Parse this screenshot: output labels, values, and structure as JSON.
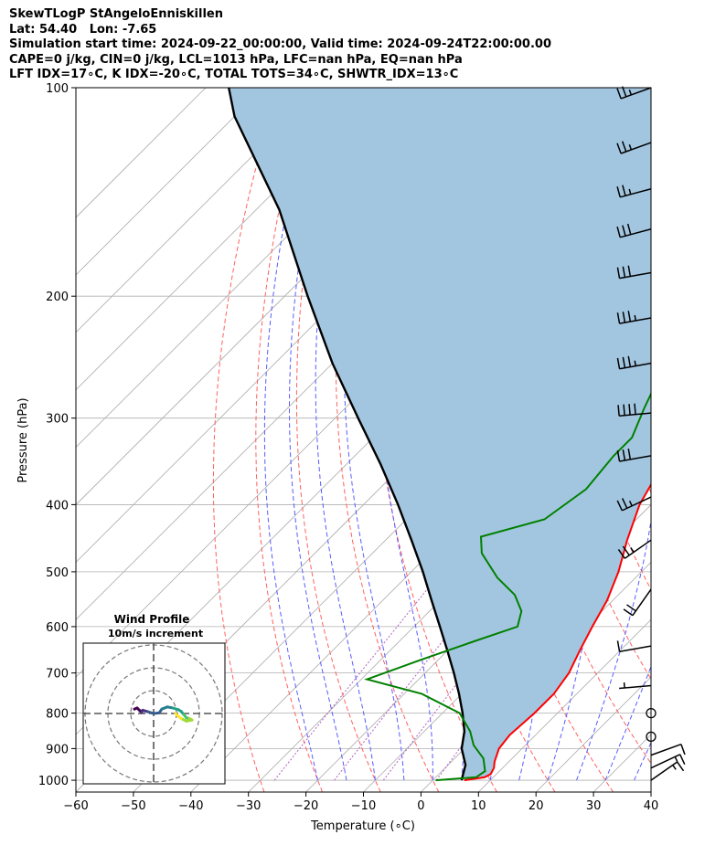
{
  "header": {
    "lines": [
      "SkewTLogP StAngeloEnniskillen",
      "Lat: 54.40   Lon: -7.65",
      "Simulation start time: 2024-09-22_00:00:00, Valid time: 2024-09-24T22:00:00.00",
      "CAPE=0 j/kg, CIN=0 j/kg, LCL=1013 hPa, LFC=nan hPa, EQ=nan hPa",
      "LFT IDX=17∘C, K IDX=-20∘C, TOTAL TOTS=34∘C, SHWTR_IDX=13∘C"
    ]
  },
  "chart_data": {
    "type": "line",
    "xlabel": "Temperature (∘C)",
    "ylabel": "Pressure (hPa)",
    "xlim": [
      -60,
      40
    ],
    "ylim": [
      1040,
      100
    ],
    "y_scale": "log",
    "x_ticks": [
      -60,
      -50,
      -40,
      -30,
      -20,
      -10,
      0,
      10,
      20,
      30,
      40
    ],
    "x_tick_labels": [
      "−60",
      "−50",
      "−40",
      "−30",
      "−20",
      "−10",
      "0",
      "10",
      "20",
      "30",
      "40"
    ],
    "y_ticks": [
      1000,
      900,
      800,
      700,
      600,
      500,
      400,
      300,
      200,
      100
    ],
    "grid": true,
    "skew": "45-degree skewed isotherms",
    "colors": {
      "temperature": "#ff0000",
      "dewpoint": "#008000",
      "parcel": "#000000",
      "cape_fill": "#a3c6e0",
      "dry_adiabats": "#ff6060",
      "moist_adiabats": "#5a5aff",
      "mixing_ratio": "#b060c0",
      "isotherms": "#aaaaaa"
    },
    "series": [
      {
        "key": "temperature",
        "points": [
          [
            5.5,
            1000
          ],
          [
            8.5,
            990
          ],
          [
            9,
            980
          ],
          [
            8.5,
            960
          ],
          [
            7.5,
            940
          ],
          [
            6,
            900
          ],
          [
            5.5,
            860
          ],
          [
            6,
            800
          ],
          [
            6,
            750
          ],
          [
            5,
            700
          ],
          [
            3,
            650
          ],
          [
            1,
            600
          ],
          [
            -1,
            550
          ],
          [
            -4,
            500
          ],
          [
            -8,
            450
          ],
          [
            -12,
            400
          ],
          [
            -15,
            350
          ],
          [
            -18,
            300
          ],
          [
            -21,
            260
          ],
          [
            -21.5,
            250
          ],
          [
            -25,
            230
          ],
          [
            -28,
            210
          ],
          [
            -32,
            190
          ],
          [
            -35,
            170
          ],
          [
            -39,
            150
          ],
          [
            -43,
            130
          ],
          [
            -47,
            115
          ],
          [
            -50,
            100
          ]
        ]
      },
      {
        "key": "dewpoint",
        "points": [
          [
            0.5,
            1000
          ],
          [
            7,
            990
          ],
          [
            7.5,
            970
          ],
          [
            5,
            930
          ],
          [
            1,
            890
          ],
          [
            -2,
            850
          ],
          [
            -7,
            800
          ],
          [
            -17,
            750
          ],
          [
            -29,
            715
          ],
          [
            -23,
            670
          ],
          [
            -17,
            630
          ],
          [
            -12,
            600
          ],
          [
            -14,
            570
          ],
          [
            -18,
            540
          ],
          [
            -24,
            510
          ],
          [
            -31,
            470
          ],
          [
            -34,
            445
          ],
          [
            -26,
            420
          ],
          [
            -24,
            380
          ],
          [
            -25,
            340
          ],
          [
            -25,
            320
          ],
          [
            -28,
            290
          ],
          [
            -31,
            260
          ],
          [
            -33,
            230
          ],
          [
            -37,
            210
          ],
          [
            -40,
            200
          ],
          [
            -42,
            180
          ],
          [
            -46,
            165
          ],
          [
            -51,
            150
          ],
          [
            -53,
            135
          ],
          [
            -55,
            120
          ],
          [
            -58,
            100
          ]
        ]
      },
      {
        "key": "parcel",
        "points": [
          [
            5,
            1000
          ],
          [
            3,
            950
          ],
          [
            -0.5,
            900
          ],
          [
            -3,
            850
          ],
          [
            -6.5,
            800
          ],
          [
            -10.5,
            750
          ],
          [
            -15,
            700
          ],
          [
            -20,
            650
          ],
          [
            -25.5,
            600
          ],
          [
            -31.5,
            550
          ],
          [
            -38,
            500
          ],
          [
            -45.5,
            450
          ],
          [
            -54,
            400
          ],
          [
            -64,
            350
          ],
          [
            -76,
            300
          ],
          [
            -90,
            250
          ],
          [
            -106,
            200
          ],
          [
            -126,
            150
          ],
          [
            -150,
            110
          ],
          [
            -156,
            100
          ]
        ]
      }
    ],
    "inset": {
      "title": "Wind Profile",
      "subtitle": "10m/s increment",
      "hodograph": [
        [
          -3.5,
          -0.8
        ],
        [
          -3.0,
          -1.0
        ],
        [
          -2.5,
          -0.5
        ],
        [
          -2.2,
          -0.2
        ],
        [
          -2.0,
          -0.6
        ],
        [
          -1.0,
          -0.3
        ],
        [
          0,
          0
        ],
        [
          1.0,
          -0.1
        ],
        [
          1.5,
          -0.8
        ],
        [
          2.5,
          -1.2
        ],
        [
          3.5,
          -1.0
        ],
        [
          4.5,
          -0.7
        ],
        [
          5.0,
          -0.4
        ],
        [
          5.5,
          0.2
        ],
        [
          6.0,
          0.8
        ],
        [
          6.5,
          0.9
        ],
        [
          7.0,
          1.2
        ],
        [
          6.0,
          1.4
        ],
        [
          5.0,
          0.9
        ],
        [
          4.5,
          0.5
        ],
        [
          4.0,
          0
        ]
      ]
    },
    "wind_barbs": [
      {
        "p": 100,
        "speed_kt": 25,
        "dir": 250
      },
      {
        "p": 120,
        "speed_kt": 25,
        "dir": 250
      },
      {
        "p": 140,
        "speed_kt": 25,
        "dir": 255
      },
      {
        "p": 160,
        "speed_kt": 30,
        "dir": 255
      },
      {
        "p": 185,
        "speed_kt": 30,
        "dir": 260
      },
      {
        "p": 215,
        "speed_kt": 35,
        "dir": 260
      },
      {
        "p": 250,
        "speed_kt": 35,
        "dir": 260
      },
      {
        "p": 295,
        "speed_kt": 40,
        "dir": 265
      },
      {
        "p": 340,
        "speed_kt": 30,
        "dir": 260
      },
      {
        "p": 390,
        "speed_kt": 25,
        "dir": 245
      },
      {
        "p": 450,
        "speed_kt": 25,
        "dir": 235
      },
      {
        "p": 530,
        "speed_kt": 20,
        "dir": 215
      },
      {
        "p": 640,
        "speed_kt": 10,
        "dir": 260
      },
      {
        "p": 730,
        "speed_kt": 5,
        "dir": 265
      },
      {
        "p": 800,
        "speed_kt": 0,
        "dir": 0
      },
      {
        "p": 865,
        "speed_kt": 0,
        "dir": 0
      },
      {
        "p": 920,
        "speed_kt": 10,
        "dir": 70
      },
      {
        "p": 960,
        "speed_kt": 15,
        "dir": 65
      },
      {
        "p": 1000,
        "speed_kt": 15,
        "dir": 55
      }
    ]
  }
}
